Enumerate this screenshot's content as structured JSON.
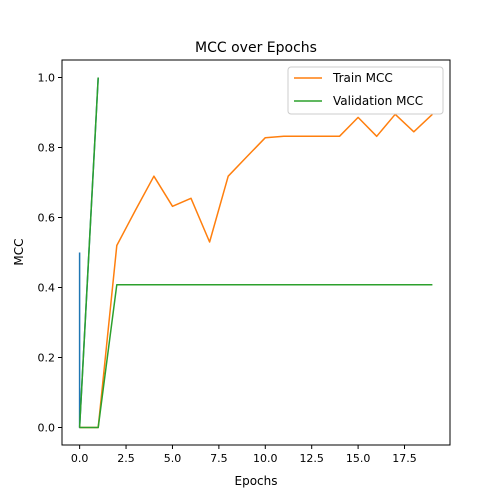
{
  "chart_data": {
    "type": "line",
    "title": "MCC over Epochs",
    "xlabel": "Epochs",
    "ylabel": "MCC",
    "xlim": [
      -0.95,
      19.95
    ],
    "ylim": [
      -0.05,
      1.05
    ],
    "xticks": [
      0.0,
      2.5,
      5.0,
      7.5,
      10.0,
      12.5,
      15.0,
      17.5
    ],
    "xtick_labels": [
      "0.0",
      "2.5",
      "5.0",
      "7.5",
      "10.0",
      "12.5",
      "15.0",
      "17.5"
    ],
    "yticks": [
      0.0,
      0.2,
      0.4,
      0.6,
      0.8,
      1.0
    ],
    "ytick_labels": [
      "0.0",
      "0.2",
      "0.4",
      "0.6",
      "0.8",
      "1.0"
    ],
    "grid": false,
    "legend_position": "top-right",
    "series": [
      {
        "color": "#1f77b4",
        "in_legend": false,
        "x": [
          0,
          0,
          1
        ],
        "y": [
          0.5,
          0.0,
          1.0
        ]
      },
      {
        "color": "#2ca02c",
        "in_legend": false,
        "x": [
          0,
          1
        ],
        "y": [
          0.0,
          1.0
        ]
      },
      {
        "name": "Train MCC",
        "color": "#ff7f0e",
        "in_legend": true,
        "x": [
          0,
          1,
          2,
          3,
          4,
          5,
          6,
          7,
          8,
          9,
          10,
          11,
          12,
          13,
          14,
          15,
          16,
          17,
          18,
          19
        ],
        "y": [
          0.0,
          0.0,
          0.52,
          0.62,
          0.718,
          0.632,
          0.655,
          0.53,
          0.718,
          0.773,
          0.828,
          0.832,
          0.832,
          0.832,
          0.832,
          0.886,
          0.832,
          0.895,
          0.845,
          0.895
        ]
      },
      {
        "name": "Validation MCC",
        "color": "#2ca02c",
        "in_legend": true,
        "x": [
          0,
          1,
          2,
          3,
          4,
          5,
          6,
          7,
          8,
          9,
          10,
          11,
          12,
          13,
          14,
          15,
          16,
          17,
          18,
          19
        ],
        "y": [
          0.0,
          0.0,
          0.408,
          0.408,
          0.408,
          0.408,
          0.408,
          0.408,
          0.408,
          0.408,
          0.408,
          0.408,
          0.408,
          0.408,
          0.408,
          0.408,
          0.408,
          0.408,
          0.408,
          0.408
        ]
      }
    ]
  }
}
